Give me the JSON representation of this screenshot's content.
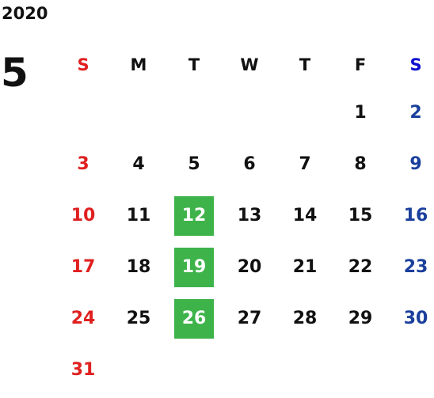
{
  "calendar": {
    "year": "2020",
    "month": "5",
    "weekdays": [
      "S",
      "M",
      "T",
      "W",
      "T",
      "F",
      "S"
    ],
    "start_offset": 5,
    "days": [
      "1",
      "2",
      "3",
      "4",
      "5",
      "6",
      "7",
      "8",
      "9",
      "10",
      "11",
      "12",
      "13",
      "14",
      "15",
      "16",
      "17",
      "18",
      "19",
      "20",
      "21",
      "22",
      "23",
      "24",
      "25",
      "26",
      "27",
      "28",
      "29",
      "30",
      "31"
    ],
    "highlighted_days": [
      "12",
      "19",
      "26"
    ]
  },
  "colors": {
    "sunday": "#e02020",
    "saturday_header": "#1010d0",
    "saturday": "#1a3f9c",
    "highlight": "#3db34a",
    "text": "#111111"
  }
}
